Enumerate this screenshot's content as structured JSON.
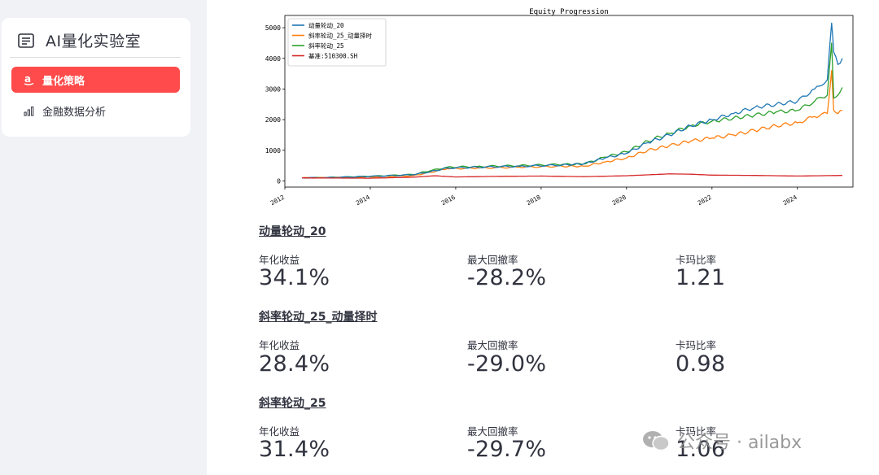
{
  "sidebar": {
    "title": "AI量化实验室",
    "items": [
      {
        "label": "量化策略",
        "active": true
      },
      {
        "label": "金融数据分析",
        "active": false
      }
    ]
  },
  "chart_data": {
    "type": "line",
    "title": "Equity Progression",
    "xlabel": "",
    "ylabel": "",
    "ylim": [
      -200,
      5400
    ],
    "xlim": [
      2012.0,
      2025.3
    ],
    "yticks": [
      0,
      1000,
      2000,
      3000,
      4000,
      5000
    ],
    "xticks": [
      "2012",
      "2014",
      "2016",
      "2018",
      "2020",
      "2022",
      "2024"
    ],
    "legend_position": "top-left",
    "series": [
      {
        "name": "动量轮动_20",
        "color": "#1f77b4",
        "x": [
          2012.4,
          2013.0,
          2014.0,
          2015.0,
          2015.4,
          2015.8,
          2016.5,
          2017.5,
          2018.5,
          2019.0,
          2019.5,
          2020.0,
          2020.5,
          2021.0,
          2021.5,
          2022.0,
          2022.5,
          2023.0,
          2023.5,
          2024.0,
          2024.4,
          2024.7,
          2024.8,
          2024.85,
          2024.95,
          2025.05
        ],
        "values": [
          100,
          110,
          150,
          200,
          300,
          420,
          450,
          480,
          520,
          560,
          750,
          900,
          1250,
          1500,
          1800,
          2000,
          2200,
          2400,
          2500,
          2600,
          3000,
          3300,
          5150,
          4200,
          3800,
          4000
        ]
      },
      {
        "name": "斜率轮动_25_动量择时",
        "color": "#ff7f0e",
        "x": [
          2012.4,
          2013.0,
          2014.0,
          2015.0,
          2015.4,
          2015.8,
          2016.5,
          2017.5,
          2018.5,
          2019.0,
          2019.5,
          2020.0,
          2020.5,
          2021.0,
          2021.5,
          2022.0,
          2022.5,
          2023.0,
          2023.5,
          2024.0,
          2024.4,
          2024.7,
          2024.8,
          2024.85,
          2024.95,
          2025.05
        ],
        "values": [
          100,
          105,
          130,
          170,
          280,
          400,
          420,
          450,
          480,
          480,
          620,
          750,
          1000,
          1150,
          1300,
          1400,
          1500,
          1650,
          1800,
          1900,
          2100,
          2200,
          3600,
          2300,
          2200,
          2300
        ]
      },
      {
        "name": "斜率轮动_25",
        "color": "#2ca02c",
        "x": [
          2012.4,
          2013.0,
          2014.0,
          2015.0,
          2015.4,
          2015.8,
          2016.5,
          2017.5,
          2018.5,
          2019.0,
          2019.5,
          2020.0,
          2020.5,
          2021.0,
          2021.5,
          2022.0,
          2022.5,
          2023.0,
          2023.5,
          2024.0,
          2024.4,
          2024.7,
          2024.8,
          2024.85,
          2024.95,
          2025.05
        ],
        "values": [
          100,
          110,
          150,
          210,
          330,
          450,
          470,
          500,
          540,
          550,
          780,
          950,
          1300,
          1550,
          1800,
          1950,
          2050,
          2150,
          2250,
          2300,
          2600,
          2800,
          4500,
          2700,
          2800,
          3050
        ]
      },
      {
        "name": "基准:510300.SH",
        "color": "#d62728",
        "x": [
          2012.4,
          2013.0,
          2014.0,
          2015.0,
          2015.5,
          2016.0,
          2017.0,
          2018.0,
          2019.0,
          2020.0,
          2021.0,
          2021.5,
          2022.0,
          2023.0,
          2024.0,
          2024.5,
          2025.05
        ],
        "values": [
          100,
          95,
          90,
          120,
          170,
          130,
          150,
          160,
          140,
          170,
          230,
          220,
          190,
          180,
          160,
          170,
          180
        ]
      }
    ]
  },
  "strategies": [
    {
      "name": "动量轮动_20",
      "metrics": [
        {
          "label": "年化收益",
          "value": "34.1%"
        },
        {
          "label": "最大回撤率",
          "value": "-28.2%"
        },
        {
          "label": "卡玛比率",
          "value": "1.21"
        }
      ]
    },
    {
      "name": "斜率轮动_25_动量择时",
      "metrics": [
        {
          "label": "年化收益",
          "value": "28.4%"
        },
        {
          "label": "最大回撤率",
          "value": "-29.0%"
        },
        {
          "label": "卡玛比率",
          "value": "0.98"
        }
      ]
    },
    {
      "name": "斜率轮动_25",
      "metrics": [
        {
          "label": "年化收益",
          "value": "31.4%"
        },
        {
          "label": "最大回撤率",
          "value": "-29.7%"
        },
        {
          "label": "卡玛比率",
          "value": "1.06"
        }
      ]
    }
  ],
  "watermark": "公众号 · ailabx"
}
